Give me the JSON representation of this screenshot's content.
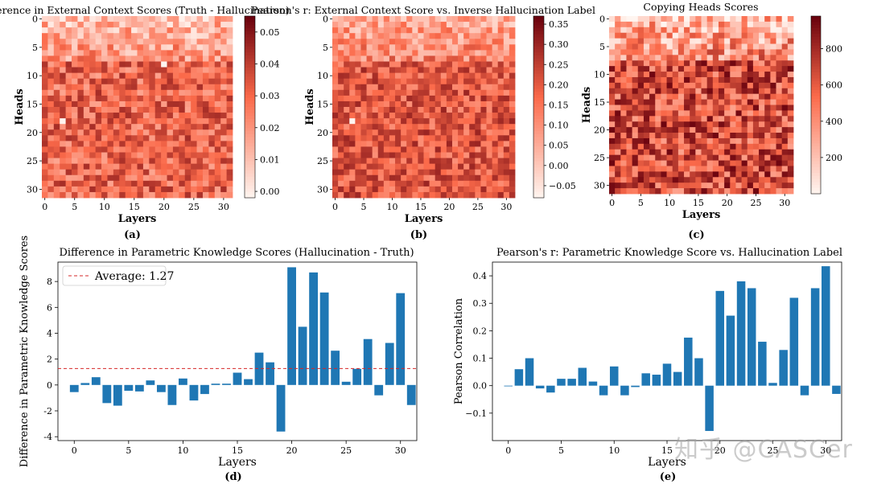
{
  "watermark": "知乎 @CASCer",
  "colors": {
    "heat_low": "#fff5f0",
    "heat_mid": "#fb6a4a",
    "heat_high": "#67000d",
    "bar": "#1f77b4",
    "avg_line": "#d62728"
  },
  "chart_data": [
    {
      "id": "a",
      "type": "heatmap",
      "title": "Difference in External Context Scores (Truth - Hallucination)",
      "caption": "(a)",
      "xlabel": "Layers",
      "ylabel": "Heads",
      "rows": 32,
      "cols": 32,
      "x_ticks": [
        0,
        5,
        10,
        15,
        20,
        25,
        30
      ],
      "y_ticks": [
        0,
        5,
        10,
        15,
        20,
        25,
        30
      ],
      "value_range": [
        -0.002,
        0.055
      ],
      "colorbar_ticks": [
        "0.00",
        "0.01",
        "0.02",
        "0.03",
        "0.04",
        "0.05"
      ],
      "colorbar_values": [
        0.0,
        0.01,
        0.02,
        0.03,
        0.04,
        0.05
      ],
      "pattern": {
        "base_top": 0.012,
        "base_bottom": 0.03,
        "spread": 0.014,
        "seed": 11,
        "low_cells": [
          [
            18,
            3
          ],
          [
            8,
            20
          ]
        ]
      }
    },
    {
      "id": "b",
      "type": "heatmap",
      "title": "Pearson's r: External Context Score vs. Inverse Hallucination Label",
      "caption": "(b)",
      "xlabel": "Layers",
      "ylabel": "Heads",
      "rows": 32,
      "cols": 32,
      "x_ticks": [
        0,
        5,
        10,
        15,
        20,
        25,
        30
      ],
      "y_ticks": [
        0,
        5,
        10,
        15,
        20,
        25,
        30
      ],
      "value_range": [
        -0.08,
        0.37
      ],
      "colorbar_ticks": [
        "−0.05",
        "0.00",
        "0.05",
        "0.10",
        "0.15",
        "0.20",
        "0.25",
        "0.30",
        "0.35"
      ],
      "colorbar_values": [
        -0.05,
        0.0,
        0.05,
        0.1,
        0.15,
        0.2,
        0.25,
        0.3,
        0.35
      ],
      "pattern": {
        "base_top": 0.06,
        "base_bottom": 0.2,
        "spread": 0.1,
        "seed": 23,
        "low_cells": [
          [
            18,
            3
          ]
        ]
      }
    },
    {
      "id": "c",
      "type": "heatmap",
      "title": "Copying Heads Scores",
      "caption": "(c)",
      "xlabel": "Layers",
      "ylabel": "Heads",
      "rows": 32,
      "cols": 32,
      "x_ticks": [
        0,
        5,
        10,
        15,
        20,
        25,
        30
      ],
      "y_ticks": [
        0,
        5,
        10,
        15,
        20,
        25,
        30
      ],
      "value_range": [
        0,
        980
      ],
      "colorbar_ticks": [
        "200",
        "400",
        "600",
        "800"
      ],
      "colorbar_values": [
        200,
        400,
        600,
        800
      ],
      "pattern": {
        "base_top": 250,
        "base_bottom": 640,
        "spread": 320,
        "seed": 37,
        "low_cells": []
      }
    },
    {
      "id": "d",
      "type": "bar",
      "title": "Difference in Parametric Knowledge Scores (Hallucination - Truth)",
      "caption": "(d)",
      "xlabel": "Layers",
      "ylabel": "Difference in Parametric Knowledge Scores",
      "categories": [
        0,
        1,
        2,
        3,
        4,
        5,
        6,
        7,
        8,
        9,
        10,
        11,
        12,
        13,
        14,
        15,
        16,
        17,
        18,
        19,
        20,
        21,
        22,
        23,
        24,
        25,
        26,
        27,
        28,
        29,
        30,
        31
      ],
      "values": [
        -0.55,
        0.15,
        0.6,
        -1.4,
        -1.6,
        -0.45,
        -0.5,
        0.35,
        -0.55,
        -1.55,
        0.5,
        -1.2,
        -0.7,
        0.1,
        0.1,
        0.95,
        0.45,
        2.5,
        1.75,
        -3.6,
        9.1,
        4.5,
        8.7,
        7.15,
        2.65,
        0.25,
        1.25,
        3.55,
        -0.8,
        3.25,
        7.1,
        -1.55
      ],
      "average": 1.27,
      "legend": "Average: 1.27",
      "legend_position": "top-left",
      "ylim": [
        -4.3,
        9.5
      ],
      "x_ticks": [
        0,
        5,
        10,
        15,
        20,
        25,
        30
      ],
      "y_ticks": [
        -4,
        -2,
        0,
        2,
        4,
        6,
        8
      ]
    },
    {
      "id": "e",
      "type": "bar",
      "title": "Pearson's r: Parametric Knowledge Score vs. Hallucination Label",
      "caption": "(e)",
      "xlabel": "Layers",
      "ylabel": "Pearson Correlation",
      "categories": [
        0,
        1,
        2,
        3,
        4,
        5,
        6,
        7,
        8,
        9,
        10,
        11,
        12,
        13,
        14,
        15,
        16,
        17,
        18,
        19,
        20,
        21,
        22,
        23,
        24,
        25,
        26,
        27,
        28,
        29,
        30,
        31
      ],
      "values": [
        0.0,
        0.06,
        0.1,
        -0.01,
        -0.025,
        0.025,
        0.025,
        0.065,
        0.015,
        -0.035,
        0.07,
        -0.035,
        -0.005,
        0.045,
        0.04,
        0.08,
        0.05,
        0.175,
        0.1,
        -0.165,
        0.345,
        0.255,
        0.38,
        0.355,
        0.16,
        0.01,
        0.13,
        0.32,
        -0.035,
        0.355,
        0.435,
        -0.03
      ],
      "ylim": [
        -0.2,
        0.45
      ],
      "x_ticks": [
        0,
        5,
        10,
        15,
        20,
        25,
        30
      ],
      "y_ticks": [
        -0.1,
        0.0,
        0.1,
        0.2,
        0.3,
        0.4
      ],
      "y_tick_labels": [
        "−0.1",
        "0.0",
        "0.1",
        "0.2",
        "0.3",
        "0.4"
      ]
    }
  ]
}
